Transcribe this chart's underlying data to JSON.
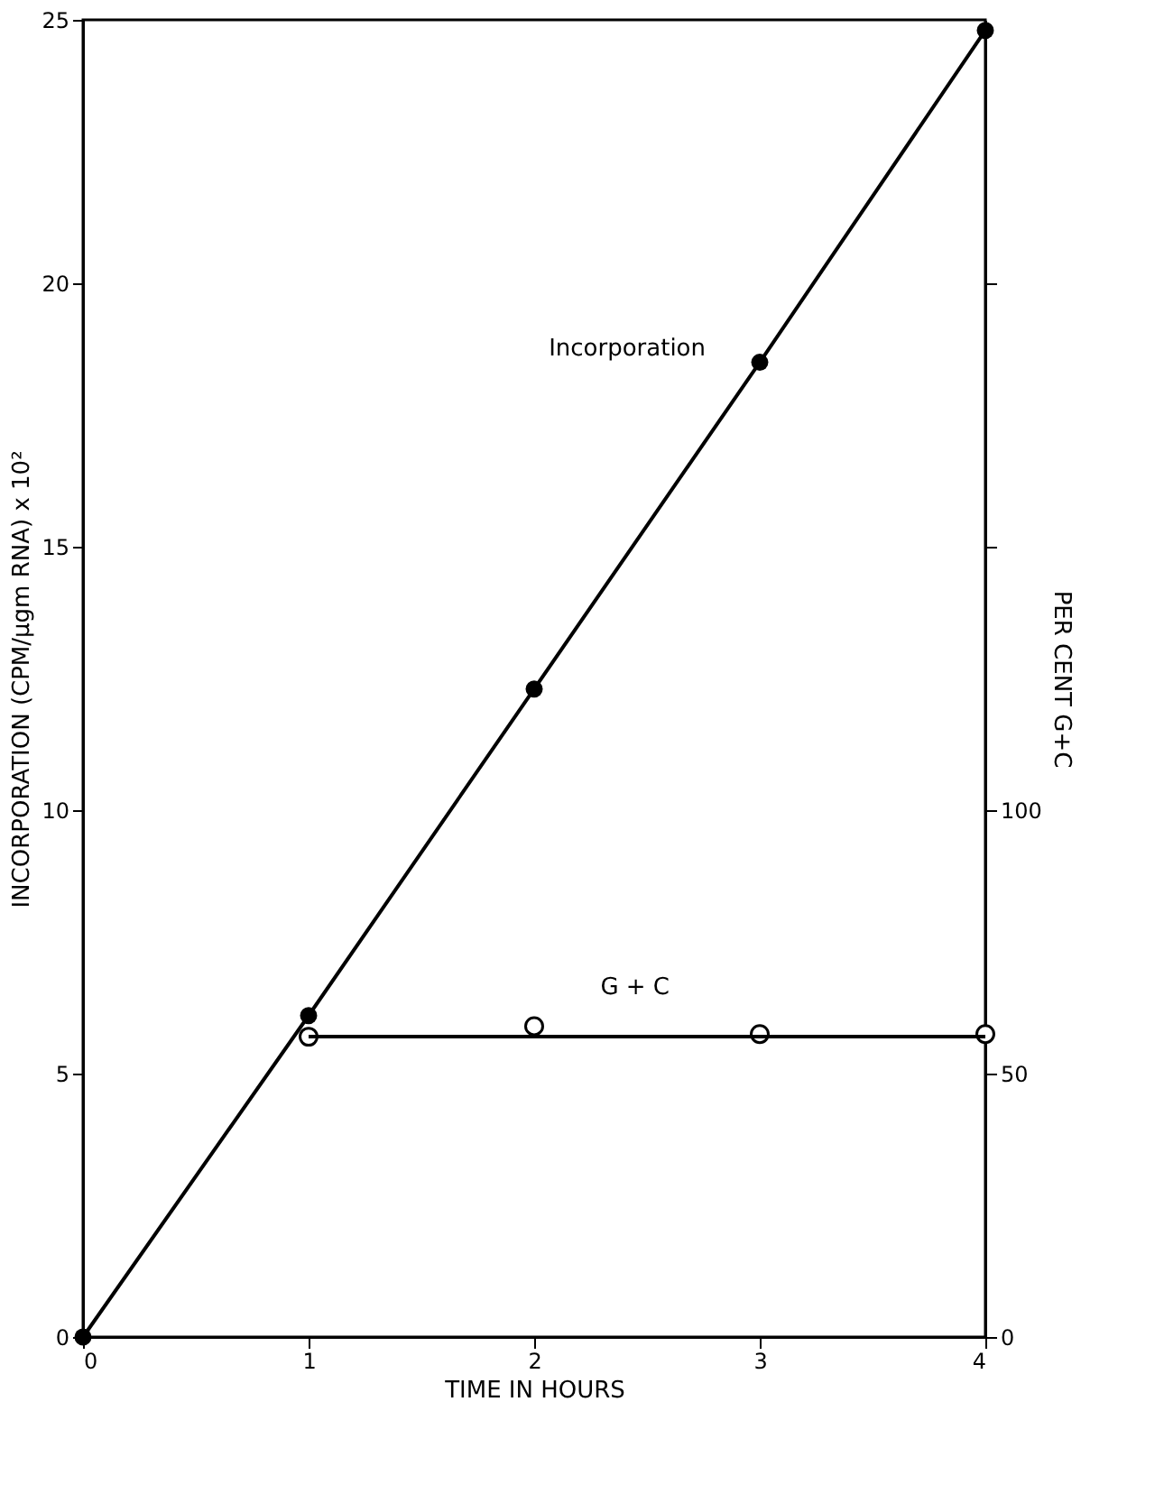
{
  "chart_data": {
    "type": "line",
    "xlabel": "TIME IN HOURS",
    "ylabel": "INCORPORATION (CPM/μgm RNA) x 10²",
    "y2label": "PER CENT G+C",
    "series": [
      {
        "name": "Incorporation",
        "color": "#000000",
        "marker": "circle",
        "x": [
          0,
          1,
          2,
          3,
          4
        ],
        "values": [
          0,
          6.1,
          12.3,
          18.5,
          24.8
        ]
      },
      {
        "name": "G + C",
        "type": "scatter",
        "color": "#000000",
        "marker": "circle",
        "axis": "y2",
        "x": [
          1,
          2,
          3,
          4
        ],
        "values": [
          57,
          59,
          57.5,
          57.5
        ]
      },
      {
        "type": "line",
        "color": "#000000",
        "marker": "none",
        "axis": "y2",
        "x": [
          1,
          4
        ],
        "values": [
          57,
          57
        ]
      }
    ],
    "xlim": [
      0,
      4
    ],
    "xticks": [
      0,
      1,
      2,
      3,
      4
    ],
    "ylim": [
      0,
      25
    ],
    "yticks": [
      0,
      5,
      10,
      15,
      20,
      25
    ],
    "y2lim": [
      0,
      250
    ],
    "y2ticks": [
      0,
      50,
      100,
      {
        "value": 150,
        "label": null
      },
      {
        "value": 200,
        "label": null
      }
    ],
    "grid": false
  }
}
